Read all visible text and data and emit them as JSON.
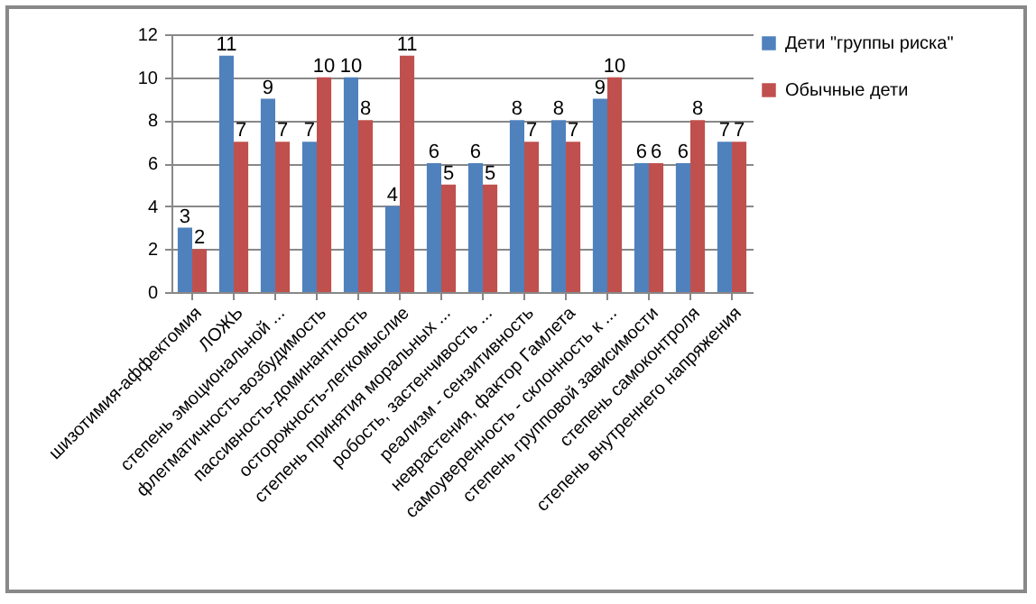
{
  "chart_data": {
    "type": "bar",
    "categories": [
      "шизотимия-аффектомия",
      "ЛОЖЬ",
      "степень эмоциональной ...",
      "флегматичность-возбудимость",
      "пассивность-доминантность",
      "осторожность-легкомыслие",
      "степень принятия моральных ...",
      "робость, застенчивость ...",
      "реализм - сензитивность",
      "неврастения, фактор Гамлета",
      "самоуверенность - склонность к ...",
      "степень групповой зависимости",
      "степень самоконтроля",
      "степень внутреннего напряжения"
    ],
    "series": [
      {
        "name": "Дети \"группы риска\"",
        "color": "#4f81bd",
        "values": [
          3,
          11,
          9,
          7,
          10,
          4,
          6,
          6,
          8,
          8,
          9,
          6,
          6,
          7
        ]
      },
      {
        "name": "Обычные дети",
        "color": "#c0504d",
        "values": [
          2,
          7,
          7,
          10,
          8,
          11,
          5,
          5,
          7,
          7,
          10,
          6,
          8,
          7
        ]
      }
    ],
    "ylim": [
      0,
      12
    ],
    "yticks": [
      0,
      2,
      4,
      6,
      8,
      10,
      12
    ],
    "grid": "y",
    "legend": "right",
    "data_labels": true
  }
}
